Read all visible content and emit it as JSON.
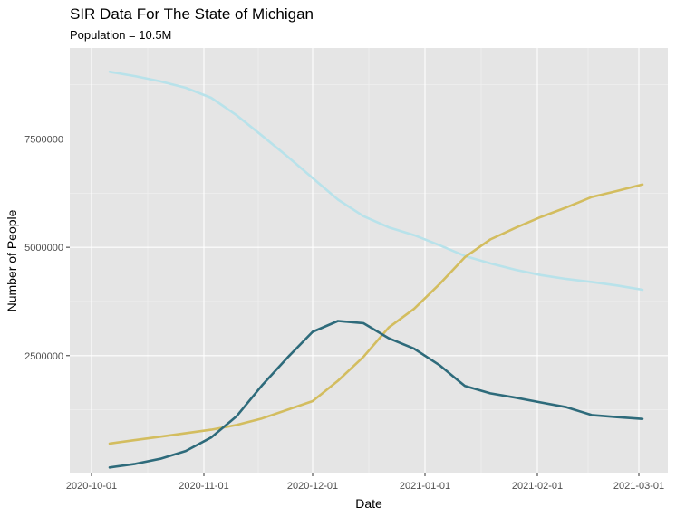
{
  "chart_data": {
    "type": "line",
    "title": "SIR Data For The State of Michigan",
    "subtitle": "Population = 10.5M",
    "xlabel": "Date",
    "ylabel": "Number of People",
    "xlim": [
      "2020-09-25",
      "2021-03-09"
    ],
    "ylim": [
      -200000,
      9600000
    ],
    "x_ticks": [
      "2020-10-01",
      "2020-11-01",
      "2020-12-01",
      "2021-01-01",
      "2021-02-01",
      "2021-03-01"
    ],
    "y_ticks": [
      2500000,
      5000000,
      7500000
    ],
    "y_tick_labels": [
      "2500000",
      "5000000",
      "7500000"
    ],
    "grid": true,
    "legend": "none",
    "series": [
      {
        "color": "#b8e2ea",
        "points": [
          [
            "2020-10-06",
            9050000
          ],
          [
            "2020-10-13",
            8950000
          ],
          [
            "2020-10-20",
            8830000
          ],
          [
            "2020-10-27",
            8680000
          ],
          [
            "2020-11-03",
            8450000
          ],
          [
            "2020-11-10",
            8050000
          ],
          [
            "2020-11-17",
            7580000
          ],
          [
            "2020-11-24",
            7100000
          ],
          [
            "2020-12-01",
            6600000
          ],
          [
            "2020-12-08",
            6100000
          ],
          [
            "2020-12-15",
            5720000
          ],
          [
            "2020-12-22",
            5460000
          ],
          [
            "2020-12-29",
            5280000
          ],
          [
            "2021-01-05",
            5050000
          ],
          [
            "2021-01-12",
            4800000
          ],
          [
            "2021-01-19",
            4630000
          ],
          [
            "2021-01-26",
            4480000
          ],
          [
            "2021-02-02",
            4360000
          ],
          [
            "2021-02-09",
            4270000
          ],
          [
            "2021-02-16",
            4200000
          ],
          [
            "2021-02-23",
            4120000
          ],
          [
            "2021-03-02",
            4020000
          ]
        ]
      },
      {
        "color": "#d3bd5f",
        "points": [
          [
            "2020-10-06",
            470000
          ],
          [
            "2020-10-13",
            550000
          ],
          [
            "2020-10-20",
            630000
          ],
          [
            "2020-10-27",
            710000
          ],
          [
            "2020-11-03",
            790000
          ],
          [
            "2020-11-10",
            900000
          ],
          [
            "2020-11-17",
            1050000
          ],
          [
            "2020-11-24",
            1250000
          ],
          [
            "2020-12-01",
            1450000
          ],
          [
            "2020-12-08",
            1920000
          ],
          [
            "2020-12-15",
            2470000
          ],
          [
            "2020-12-22",
            3150000
          ],
          [
            "2020-12-29",
            3580000
          ],
          [
            "2021-01-05",
            4150000
          ],
          [
            "2021-01-12",
            4770000
          ],
          [
            "2021-01-19",
            5180000
          ],
          [
            "2021-01-26",
            5450000
          ],
          [
            "2021-02-02",
            5700000
          ],
          [
            "2021-02-09",
            5920000
          ],
          [
            "2021-02-16",
            6160000
          ],
          [
            "2021-02-23",
            6300000
          ],
          [
            "2021-03-02",
            6450000
          ]
        ]
      },
      {
        "color": "#2e6b7b",
        "points": [
          [
            "2020-10-06",
            -80000
          ],
          [
            "2020-10-13",
            0
          ],
          [
            "2020-10-20",
            120000
          ],
          [
            "2020-10-27",
            300000
          ],
          [
            "2020-11-03",
            610000
          ],
          [
            "2020-11-10",
            1100000
          ],
          [
            "2020-11-17",
            1810000
          ],
          [
            "2020-11-24",
            2450000
          ],
          [
            "2020-12-01",
            3050000
          ],
          [
            "2020-12-08",
            3300000
          ],
          [
            "2020-12-15",
            3250000
          ],
          [
            "2020-12-22",
            2900000
          ],
          [
            "2020-12-29",
            2660000
          ],
          [
            "2021-01-05",
            2280000
          ],
          [
            "2021-01-12",
            1800000
          ],
          [
            "2021-01-19",
            1630000
          ],
          [
            "2021-01-26",
            1530000
          ],
          [
            "2021-02-02",
            1420000
          ],
          [
            "2021-02-09",
            1310000
          ],
          [
            "2021-02-16",
            1130000
          ],
          [
            "2021-02-23",
            1080000
          ],
          [
            "2021-03-02",
            1040000
          ]
        ]
      }
    ]
  }
}
